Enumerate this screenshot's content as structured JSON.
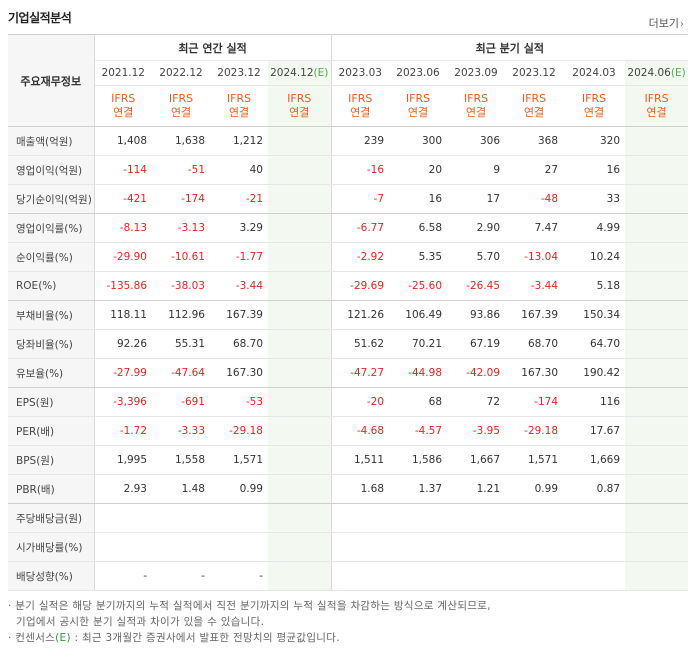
{
  "title": "기업실적분석",
  "more_label": "더보기",
  "header": {
    "row_label": "주요재무정보",
    "annual_group": "최근 연간 실적",
    "quarter_group": "최근 분기 실적",
    "estimate_mark": "(E)",
    "annual_periods": [
      "2021.12",
      "2022.12",
      "2023.12",
      "2024.12"
    ],
    "quarter_periods": [
      "2023.03",
      "2023.06",
      "2023.09",
      "2023.12",
      "2024.03",
      "2024.06"
    ],
    "ifrs_top": "IFRS",
    "ifrs_bottom": "연결"
  },
  "rows": [
    {
      "label": "매출액(억원)",
      "annual": [
        "1,408",
        "1,638",
        "1,212",
        ""
      ],
      "quarter": [
        "239",
        "300",
        "306",
        "368",
        "320",
        ""
      ]
    },
    {
      "label": "영업이익(억원)",
      "annual": [
        "-114",
        "-51",
        "40",
        ""
      ],
      "quarter": [
        "-16",
        "20",
        "9",
        "27",
        "16",
        ""
      ]
    },
    {
      "label": "당기순이익(억원)",
      "annual": [
        "-421",
        "-174",
        "-21",
        ""
      ],
      "quarter": [
        "-7",
        "16",
        "17",
        "-48",
        "33",
        ""
      ]
    },
    {
      "label": "영업이익률(%)",
      "annual": [
        "-8.13",
        "-3.13",
        "3.29",
        ""
      ],
      "quarter": [
        "-6.77",
        "6.58",
        "2.90",
        "7.47",
        "4.99",
        ""
      ]
    },
    {
      "label": "순이익률(%)",
      "annual": [
        "-29.90",
        "-10.61",
        "-1.77",
        ""
      ],
      "quarter": [
        "-2.92",
        "5.35",
        "5.70",
        "-13.04",
        "10.24",
        ""
      ]
    },
    {
      "label": "ROE(%)",
      "annual": [
        "-135.86",
        "-38.03",
        "-3.44",
        ""
      ],
      "quarter": [
        "-29.69",
        "-25.60",
        "-26.45",
        "-3.44",
        "5.18",
        ""
      ]
    },
    {
      "label": "부채비율(%)",
      "annual": [
        "118.11",
        "112.96",
        "167.39",
        ""
      ],
      "quarter": [
        "121.26",
        "106.49",
        "93.86",
        "167.39",
        "150.34",
        ""
      ]
    },
    {
      "label": "당좌비율(%)",
      "annual": [
        "92.26",
        "55.31",
        "68.70",
        ""
      ],
      "quarter": [
        "51.62",
        "70.21",
        "67.19",
        "68.70",
        "64.70",
        ""
      ]
    },
    {
      "label": "유보율(%)",
      "annual": [
        "-27.99",
        "-47.64",
        "167.30",
        ""
      ],
      "quarter": [
        "-47.27",
        "-44.98",
        "-42.09",
        "167.30",
        "190.42",
        ""
      ]
    },
    {
      "label": "EPS(원)",
      "annual": [
        "-3,396",
        "-691",
        "-53",
        ""
      ],
      "quarter": [
        "-20",
        "68",
        "72",
        "-174",
        "116",
        ""
      ]
    },
    {
      "label": "PER(배)",
      "annual": [
        "-1.72",
        "-3.33",
        "-29.18",
        ""
      ],
      "quarter": [
        "-4.68",
        "-4.57",
        "-3.95",
        "-29.18",
        "17.67",
        ""
      ]
    },
    {
      "label": "BPS(원)",
      "annual": [
        "1,995",
        "1,558",
        "1,571",
        ""
      ],
      "quarter": [
        "1,511",
        "1,586",
        "1,667",
        "1,571",
        "1,669",
        ""
      ]
    },
    {
      "label": "PBR(배)",
      "annual": [
        "2.93",
        "1.48",
        "0.99",
        ""
      ],
      "quarter": [
        "1.68",
        "1.37",
        "1.21",
        "0.99",
        "0.87",
        ""
      ]
    },
    {
      "label": "주당배당금(원)",
      "annual": [
        "",
        "",
        "",
        ""
      ],
      "quarter": [
        "",
        "",
        "",
        "",
        "",
        ""
      ]
    },
    {
      "label": "시가배당률(%)",
      "annual": [
        "",
        "",
        "",
        ""
      ],
      "quarter": [
        "",
        "",
        "",
        "",
        "",
        ""
      ]
    },
    {
      "label": "배당성향(%)",
      "annual": [
        "-",
        "-",
        "-",
        ""
      ],
      "quarter": [
        "",
        "",
        "",
        "",
        "",
        ""
      ]
    }
  ],
  "notes": {
    "line1": "· 분기 실적은 해당 분기까지의 누적 실적에서 직전 분기까지의 누적 실적을 차감하는 방식으로 계산되므로,",
    "line2": "  기업에서 공시한 분기 실적과 차이가 있을 수 있습니다.",
    "line3_pre": "· 컨센서스",
    "line3_post": " : 최근 3개월간 증권사에서 발표한 전망치의 평균값입니다."
  },
  "colors": {
    "negative": "#e8231f",
    "ifrs": "#e95d1f",
    "estimate_bg": "#f3f9f1",
    "estimate_mark": "#4caf50"
  }
}
